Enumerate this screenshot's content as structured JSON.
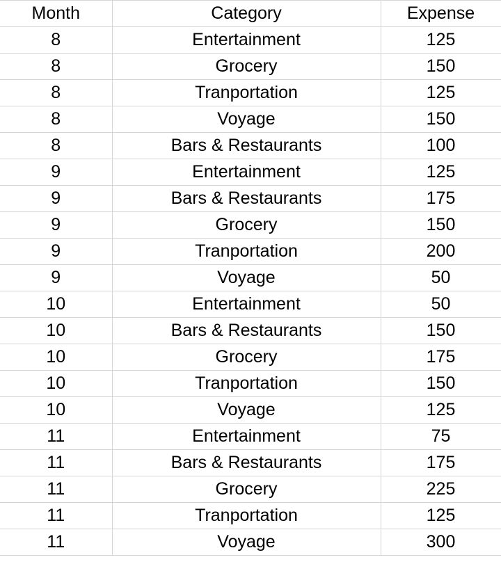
{
  "headers": {
    "month": "Month",
    "category": "Category",
    "expense": "Expense"
  },
  "rows": [
    {
      "month": "8",
      "category": "Entertainment",
      "expense": "125"
    },
    {
      "month": "8",
      "category": "Grocery",
      "expense": "150"
    },
    {
      "month": "8",
      "category": "Tranportation",
      "expense": "125"
    },
    {
      "month": "8",
      "category": "Voyage",
      "expense": "150"
    },
    {
      "month": "8",
      "category": "Bars & Restaurants",
      "expense": "100"
    },
    {
      "month": "9",
      "category": "Entertainment",
      "expense": "125"
    },
    {
      "month": "9",
      "category": "Bars & Restaurants",
      "expense": "175"
    },
    {
      "month": "9",
      "category": "Grocery",
      "expense": "150"
    },
    {
      "month": "9",
      "category": "Tranportation",
      "expense": "200"
    },
    {
      "month": "9",
      "category": "Voyage",
      "expense": "50"
    },
    {
      "month": "10",
      "category": "Entertainment",
      "expense": "50"
    },
    {
      "month": "10",
      "category": "Bars & Restaurants",
      "expense": "150"
    },
    {
      "month": "10",
      "category": "Grocery",
      "expense": "175"
    },
    {
      "month": "10",
      "category": "Tranportation",
      "expense": "150"
    },
    {
      "month": "10",
      "category": "Voyage",
      "expense": "125"
    },
    {
      "month": "11",
      "category": "Entertainment",
      "expense": "75"
    },
    {
      "month": "11",
      "category": "Bars & Restaurants",
      "expense": "175"
    },
    {
      "month": "11",
      "category": "Grocery",
      "expense": "225"
    },
    {
      "month": "11",
      "category": "Tranportation",
      "expense": "125"
    },
    {
      "month": "11",
      "category": "Voyage",
      "expense": "300"
    }
  ]
}
